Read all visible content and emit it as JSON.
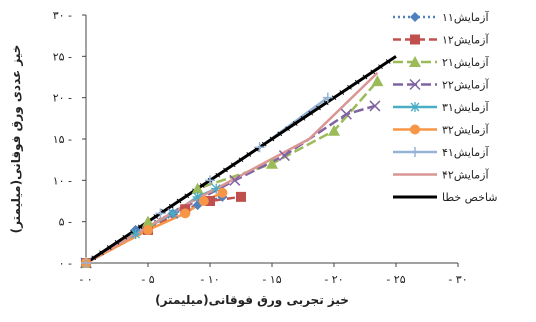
{
  "chart_data": {
    "type": "line",
    "xlabel": "خیز تجربی ورق فوقانی(میلیمتر)",
    "ylabel": "خیز عددی ورق فوقانی(میلیمتر)",
    "xlim": [
      0,
      30
    ],
    "ylim": [
      0,
      30
    ],
    "xticks": [
      "۰",
      "۵",
      "۱۰",
      "۱۵",
      "۲۰",
      "۲۵",
      "۳۰"
    ],
    "yticks": [
      "۰",
      "۵",
      "۱۰",
      "۱۵",
      "۲۰",
      "۲۵",
      "۳۰"
    ],
    "grid": false,
    "legend_position": "right",
    "series": [
      {
        "name": "آزمایش۱۱",
        "color": "#4f81bd",
        "dash": "2,3",
        "marker": "diamond",
        "x": [
          0,
          4,
          7,
          9,
          11
        ],
        "y": [
          0,
          4,
          6,
          7,
          8
        ]
      },
      {
        "name": "آزمایش۱۲",
        "color": "#c0504d",
        "dash": "8,4",
        "marker": "square",
        "x": [
          0,
          5,
          8,
          10,
          12.5
        ],
        "y": [
          0,
          4,
          6.5,
          7.5,
          8
        ]
      },
      {
        "name": "آزمایش۲۱",
        "color": "#9bbb59",
        "dash": "10,4",
        "marker": "triangle",
        "x": [
          0,
          5,
          9,
          15,
          20,
          23.5
        ],
        "y": [
          0,
          5,
          9,
          12,
          16,
          22
        ]
      },
      {
        "name": "آزمایش۲۲",
        "color": "#8064a2",
        "dash": "10,4",
        "marker": "x",
        "x": [
          0,
          7,
          12,
          16,
          21,
          23.3
        ],
        "y": [
          0,
          6,
          10,
          13,
          18,
          19
        ]
      },
      {
        "name": "آزمایش۳۱",
        "color": "#4bacc6",
        "dash": "",
        "marker": "asterisk",
        "x": [
          0,
          4,
          7,
          9,
          10.5
        ],
        "y": [
          0,
          3.5,
          6,
          8,
          9
        ]
      },
      {
        "name": "آزمایش۳۲",
        "color": "#f79646",
        "dash": "",
        "marker": "circle",
        "x": [
          0,
          5,
          8,
          9.5,
          11
        ],
        "y": [
          0,
          4,
          6,
          7.5,
          8.5
        ]
      },
      {
        "name": "آزمایش۴۱",
        "color": "#95b3d7",
        "dash": "",
        "marker": "plus",
        "x": [
          0,
          6,
          10,
          14,
          19.5
        ],
        "y": [
          0,
          6,
          10,
          14,
          20
        ]
      },
      {
        "name": "آزمایش۴۲",
        "color": "#d99694",
        "dash": "",
        "marker": "none",
        "x": [
          0,
          8,
          13,
          18,
          23.5
        ],
        "y": [
          0,
          7,
          11,
          15,
          23
        ]
      },
      {
        "name": "شاخص خطا",
        "color": "#000000",
        "dash": "",
        "marker": "none",
        "x": [
          0,
          25
        ],
        "y": [
          0,
          25
        ]
      }
    ]
  }
}
